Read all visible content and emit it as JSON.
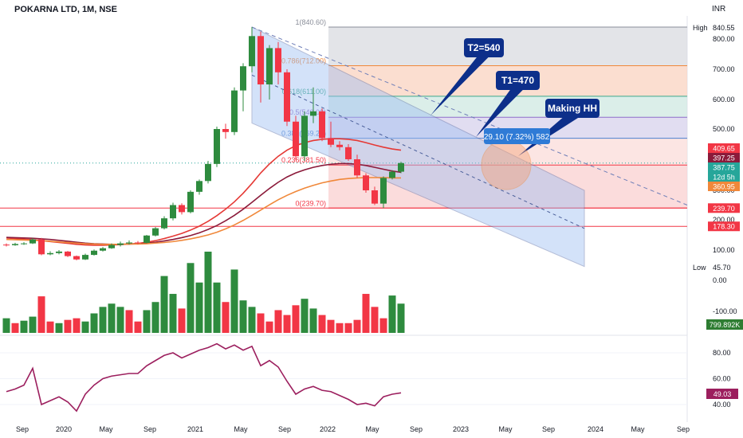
{
  "header": {
    "symbol": "POKARNA LTD, 1M, NSE",
    "currency": "INR"
  },
  "colors": {
    "up": "#2e8b3e",
    "down": "#f23645",
    "ma_red": "#e53935",
    "ma_maroon": "#8b1a3a",
    "ma_orange": "#f0883a",
    "channel": "#6f7fb8",
    "rsi": "#9c1f5e",
    "callout": "#0d2f8a",
    "measure": "#2f7bd6"
  },
  "chart_data": [
    {
      "type": "candlestick",
      "title": "",
      "y_scale": "log",
      "x_ticks": [
        "Sep",
        "2020",
        "May",
        "Sep",
        "2021",
        "May",
        "Sep",
        "2022",
        "May",
        "Sep",
        "2023",
        "May",
        "Sep",
        "2024",
        "May",
        "Sep"
      ],
      "y_ticks": [
        840.55,
        800.0,
        700.0,
        600.0,
        500.0,
        400.0,
        387.75,
        300.0,
        200.0,
        100.0,
        45.7,
        0.0,
        -100.0
      ],
      "candles": [
        {
          "date": "2019-08",
          "o": 118,
          "h": 122,
          "l": 112,
          "c": 116
        },
        {
          "date": "2019-09",
          "o": 116,
          "h": 124,
          "l": 114,
          "c": 120
        },
        {
          "date": "2019-10",
          "o": 120,
          "h": 126,
          "l": 117,
          "c": 122
        },
        {
          "date": "2019-11",
          "o": 122,
          "h": 140,
          "l": 120,
          "c": 135
        },
        {
          "date": "2019-12",
          "o": 135,
          "h": 140,
          "l": 83,
          "c": 86
        },
        {
          "date": "2020-01",
          "o": 86,
          "h": 96,
          "l": 83,
          "c": 90
        },
        {
          "date": "2020-02",
          "o": 90,
          "h": 100,
          "l": 86,
          "c": 95
        },
        {
          "date": "2020-03",
          "o": 95,
          "h": 97,
          "l": 77,
          "c": 80
        },
        {
          "date": "2020-04",
          "o": 80,
          "h": 82,
          "l": 66,
          "c": 69
        },
        {
          "date": "2020-05",
          "o": 69,
          "h": 88,
          "l": 67,
          "c": 84
        },
        {
          "date": "2020-06",
          "o": 84,
          "h": 102,
          "l": 82,
          "c": 98
        },
        {
          "date": "2020-07",
          "o": 98,
          "h": 110,
          "l": 95,
          "c": 106
        },
        {
          "date": "2020-08",
          "o": 106,
          "h": 122,
          "l": 104,
          "c": 117
        },
        {
          "date": "2020-09",
          "o": 117,
          "h": 128,
          "l": 112,
          "c": 122
        },
        {
          "date": "2020-10",
          "o": 122,
          "h": 132,
          "l": 118,
          "c": 125
        },
        {
          "date": "2020-11",
          "o": 125,
          "h": 130,
          "l": 119,
          "c": 124
        },
        {
          "date": "2020-12",
          "o": 124,
          "h": 150,
          "l": 122,
          "c": 148
        },
        {
          "date": "2021-01",
          "o": 148,
          "h": 176,
          "l": 145,
          "c": 172
        },
        {
          "date": "2021-02",
          "o": 172,
          "h": 212,
          "l": 168,
          "c": 205
        },
        {
          "date": "2021-03",
          "o": 205,
          "h": 258,
          "l": 198,
          "c": 250
        },
        {
          "date": "2021-04",
          "o": 250,
          "h": 256,
          "l": 218,
          "c": 226
        },
        {
          "date": "2021-05",
          "o": 226,
          "h": 300,
          "l": 222,
          "c": 295
        },
        {
          "date": "2021-06",
          "o": 295,
          "h": 335,
          "l": 285,
          "c": 330
        },
        {
          "date": "2021-07",
          "o": 330,
          "h": 395,
          "l": 322,
          "c": 385
        },
        {
          "date": "2021-08",
          "o": 385,
          "h": 508,
          "l": 375,
          "c": 500
        },
        {
          "date": "2021-09",
          "o": 500,
          "h": 518,
          "l": 468,
          "c": 490
        },
        {
          "date": "2021-10",
          "o": 490,
          "h": 640,
          "l": 480,
          "c": 630
        },
        {
          "date": "2021-11",
          "o": 630,
          "h": 720,
          "l": 560,
          "c": 710
        },
        {
          "date": "2021-12",
          "o": 710,
          "h": 840.6,
          "l": 690,
          "c": 810
        },
        {
          "date": "2022-01",
          "o": 810,
          "h": 825,
          "l": 590,
          "c": 650
        },
        {
          "date": "2022-02",
          "o": 650,
          "h": 780,
          "l": 600,
          "c": 770
        },
        {
          "date": "2022-03",
          "o": 770,
          "h": 790,
          "l": 650,
          "c": 690
        },
        {
          "date": "2022-04",
          "o": 690,
          "h": 700,
          "l": 510,
          "c": 525
        },
        {
          "date": "2022-05",
          "o": 525,
          "h": 545,
          "l": 398,
          "c": 410
        },
        {
          "date": "2022-06",
          "o": 410,
          "h": 560,
          "l": 395,
          "c": 545
        },
        {
          "date": "2022-07",
          "o": 545,
          "h": 640,
          "l": 520,
          "c": 560
        },
        {
          "date": "2022-08",
          "o": 560,
          "h": 570,
          "l": 460,
          "c": 470
        },
        {
          "date": "2022-09",
          "o": 470,
          "h": 525,
          "l": 440,
          "c": 448
        },
        {
          "date": "2022-10",
          "o": 448,
          "h": 460,
          "l": 430,
          "c": 440
        },
        {
          "date": "2022-11",
          "o": 440,
          "h": 450,
          "l": 395,
          "c": 400
        },
        {
          "date": "2022-12",
          "o": 400,
          "h": 415,
          "l": 340,
          "c": 348
        },
        {
          "date": "2023-01",
          "o": 348,
          "h": 355,
          "l": 292,
          "c": 300
        },
        {
          "date": "2023-02",
          "o": 300,
          "h": 312,
          "l": 250,
          "c": 255
        },
        {
          "date": "2023-03",
          "o": 255,
          "h": 345,
          "l": 239.7,
          "c": 340
        },
        {
          "date": "2023-04",
          "o": 340,
          "h": 365,
          "l": 335,
          "c": 360
        },
        {
          "date": "2023-05",
          "o": 360,
          "h": 392,
          "l": 355,
          "c": 387.75
        }
      ],
      "moving_averages": [
        {
          "values": [
            140,
            138,
            136,
            134,
            131,
            128,
            125,
            122,
            119,
            117,
            116,
            116,
            117,
            118,
            120,
            122,
            126,
            131,
            138,
            146,
            155,
            166,
            179,
            195,
            214,
            236,
            261,
            290,
            322,
            356,
            385,
            410,
            430,
            445,
            455,
            462,
            466,
            468,
            468,
            466,
            462,
            455,
            447,
            440,
            434,
            430
          ],
          "color": "#e53935"
        },
        {
          "values": [
            142,
            141,
            140,
            139,
            137,
            135,
            132,
            129,
            126,
            123,
            121,
            120,
            119,
            119,
            120,
            121,
            123,
            126,
            130,
            135,
            141,
            148,
            157,
            168,
            181,
            197,
            215,
            236,
            259,
            283,
            306,
            326,
            343,
            356,
            366,
            374,
            380,
            384,
            386,
            386,
            384,
            380,
            374,
            368,
            362,
            358
          ],
          "color": "#8b1a3a"
        },
        {
          "values": [
            135,
            134,
            133,
            132,
            131,
            129,
            127,
            125,
            123,
            121,
            120,
            119,
            119,
            119,
            120,
            120,
            121,
            123,
            125,
            128,
            132,
            137,
            143,
            150,
            159,
            170,
            183,
            198,
            215,
            233,
            251,
            268,
            283,
            296,
            307,
            316,
            324,
            330,
            335,
            338,
            340,
            341,
            341,
            341,
            340,
            340
          ],
          "color": "#f0883a"
        }
      ],
      "fibonacci": [
        {
          "level": "1",
          "price": 840.6
        },
        {
          "level": "0.786",
          "price": 712.0
        },
        {
          "level": "0.618",
          "price": 611.0
        },
        {
          "level": "0.5",
          "price": 540.0
        },
        {
          "level": "0.382",
          "price": 469.25
        },
        {
          "level": "0.236",
          "price": 381.5
        },
        {
          "level": "0",
          "price": 239.7
        }
      ],
      "horizontal_lines": [
        239.7,
        178.3
      ],
      "channel": {
        "start_date": "2021-12",
        "end_date": "2024-05",
        "upper_start": 840.6,
        "upper_end": 300,
        "lower_start": 520,
        "lower_end": 45.7
      },
      "volume": [
        {
          "v": 0.18,
          "up": true
        },
        {
          "v": 0.12,
          "up": false
        },
        {
          "v": 0.15,
          "up": true
        },
        {
          "v": 0.2,
          "up": true
        },
        {
          "v": 0.45,
          "up": false
        },
        {
          "v": 0.14,
          "up": false
        },
        {
          "v": 0.12,
          "up": true
        },
        {
          "v": 0.16,
          "up": false
        },
        {
          "v": 0.18,
          "up": false
        },
        {
          "v": 0.14,
          "up": true
        },
        {
          "v": 0.24,
          "up": true
        },
        {
          "v": 0.32,
          "up": true
        },
        {
          "v": 0.36,
          "up": true
        },
        {
          "v": 0.32,
          "up": true
        },
        {
          "v": 0.28,
          "up": false
        },
        {
          "v": 0.14,
          "up": false
        },
        {
          "v": 0.28,
          "up": true
        },
        {
          "v": 0.38,
          "up": true
        },
        {
          "v": 0.7,
          "up": true
        },
        {
          "v": 0.48,
          "up": true
        },
        {
          "v": 0.3,
          "up": false
        },
        {
          "v": 0.86,
          "up": true
        },
        {
          "v": 0.62,
          "up": true
        },
        {
          "v": 1.0,
          "up": true
        },
        {
          "v": 0.62,
          "up": true
        },
        {
          "v": 0.38,
          "up": false
        },
        {
          "v": 0.78,
          "up": true
        },
        {
          "v": 0.4,
          "up": true
        },
        {
          "v": 0.32,
          "up": true
        },
        {
          "v": 0.24,
          "up": false
        },
        {
          "v": 0.14,
          "up": false
        },
        {
          "v": 0.28,
          "up": false
        },
        {
          "v": 0.22,
          "up": false
        },
        {
          "v": 0.34,
          "up": false
        },
        {
          "v": 0.42,
          "up": true
        },
        {
          "v": 0.3,
          "up": true
        },
        {
          "v": 0.22,
          "up": false
        },
        {
          "v": 0.16,
          "up": false
        },
        {
          "v": 0.12,
          "up": false
        },
        {
          "v": 0.12,
          "up": false
        },
        {
          "v": 0.16,
          "up": false
        },
        {
          "v": 0.48,
          "up": false
        },
        {
          "v": 0.32,
          "up": false
        },
        {
          "v": 0.18,
          "up": false
        },
        {
          "v": 0.46,
          "up": true
        },
        {
          "v": 0.36,
          "up": true
        }
      ],
      "rsi": [
        50,
        52,
        55,
        68,
        40,
        43,
        46,
        42,
        35,
        48,
        55,
        60,
        62,
        63,
        64,
        64,
        70,
        74,
        78,
        80,
        76,
        79,
        82,
        84,
        87,
        83,
        86,
        82,
        85,
        70,
        74,
        69,
        58,
        48,
        52,
        54,
        51,
        50,
        47,
        44,
        40,
        41,
        39,
        46,
        48,
        49.03
      ],
      "rsi_ticks": [
        80.0,
        60.0,
        40.0
      ],
      "annotations": [
        "T2=540",
        "T1=470",
        "Making HH",
        "29.10 (7.32%) 582"
      ],
      "price_tags": [
        {
          "label": "409.65",
          "price": 409.65,
          "color": "#f23645"
        },
        {
          "label": "397.25",
          "price": 397.25,
          "color": "#8b1a3a"
        },
        {
          "label": "387.75",
          "price": 387.75,
          "color": "#26a69a"
        },
        {
          "label": "12d 5h",
          "price": 374,
          "color": "#26a69a"
        },
        {
          "label": "360.95",
          "price": 360.95,
          "color": "#f0883a"
        },
        {
          "label": "239.70",
          "price": 239.7,
          "color": "#f23645"
        },
        {
          "label": "178.30",
          "price": 178.3,
          "color": "#f23645"
        }
      ],
      "volume_tag": "799.892K",
      "rsi_tag": "49.03",
      "high_label": "High",
      "high_value": "840.55",
      "low_label": "Low",
      "low_value": "45.70"
    }
  ]
}
